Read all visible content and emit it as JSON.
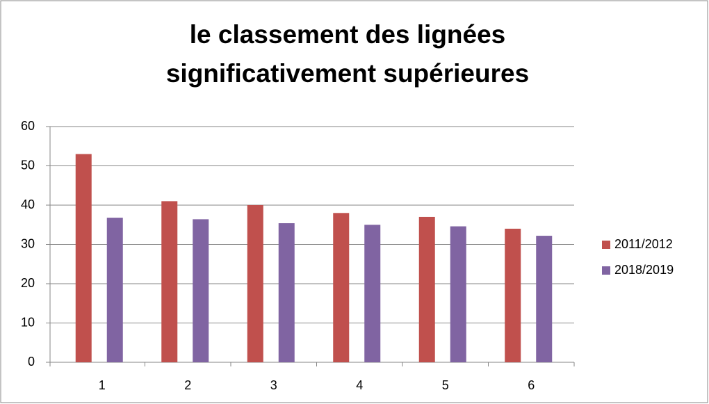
{
  "chart_data": {
    "type": "bar",
    "title": [
      "le classement des lignées",
      "significativement supérieures"
    ],
    "categories": [
      "1",
      "2",
      "3",
      "4",
      "5",
      "6"
    ],
    "series": [
      {
        "name": "2011/2012",
        "color": "#c0504d",
        "values": [
          53,
          41,
          40,
          38,
          37,
          34
        ]
      },
      {
        "name": "2018/2019",
        "color": "#8064a2",
        "values": [
          36.8,
          36.4,
          35.4,
          35,
          34.6,
          32.2
        ]
      }
    ],
    "ylim": [
      0,
      60
    ],
    "yticks": [
      0,
      10,
      20,
      30,
      40,
      50,
      60
    ],
    "grid": true,
    "legend": "right"
  }
}
